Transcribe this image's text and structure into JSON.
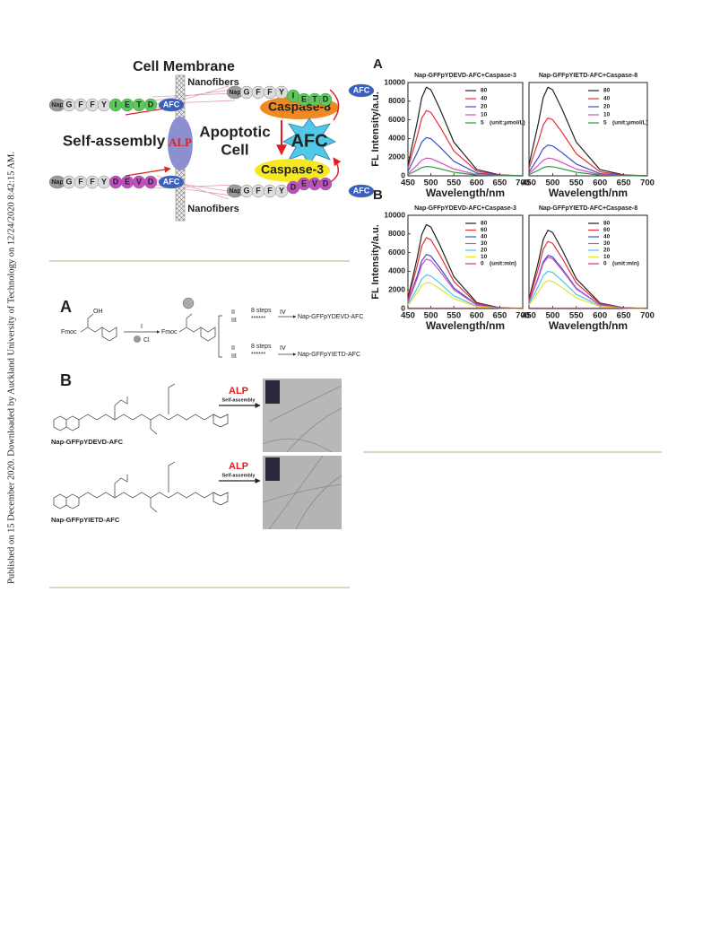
{
  "sidebar": "Published on 15 December 2020. Downloaded by Auckland University of Technology on 12/24/2020 8:42:15 AM.",
  "figure1": {
    "title": "Cell Membrane",
    "nanofibers_top": "Nanofibers",
    "nanofibers_bottom": "Nanofibers",
    "self_assembly": "Self-assembly",
    "alp": "ALP",
    "apoptotic": "Apoptotic",
    "cell": "Cell",
    "caspase8": "Caspase-8",
    "caspase3": "Caspase-3",
    "afc": "AFC",
    "peptide_ietd": [
      "Nap",
      "G",
      "F",
      "F",
      "Y",
      "I",
      "E",
      "T",
      "D",
      "AFC"
    ],
    "peptide_devd": [
      "Nap",
      "G",
      "F",
      "F",
      "Y",
      "D",
      "E",
      "V",
      "D",
      "AFC"
    ],
    "cleaved_ietd": [
      "Nap",
      "G",
      "F",
      "F",
      "Y",
      "I",
      "E",
      "T",
      "D",
      "AFC"
    ],
    "cleaved_devd": [
      "Nap",
      "G",
      "F",
      "F",
      "Y",
      "D",
      "E",
      "V",
      "D",
      "AFC"
    ]
  },
  "figure2": {
    "panel_a": "A",
    "panel_b": "B",
    "fmoc_1": "Fmoc",
    "fmoc_2": "Fmoc",
    "oh": "OH",
    "step_1": "I",
    "cl": "Cl",
    "upper": {
      "step_2": "II",
      "step_3": "III",
      "eight_steps": "8 steps",
      "stars": "******",
      "step_4": "IV",
      "product": "Nap-GFFpYDEVD-AFC"
    },
    "lower": {
      "step_2": "II",
      "step_3": "III",
      "eight_steps": "8 steps",
      "stars": "******",
      "step_4": "IV",
      "product": "Nap-GFFpYIETD-AFC"
    },
    "top_alp": "ALP",
    "top_self_assembly": "Self-assembly",
    "top_name": "Nap-GFFpYDEVD-AFC",
    "bottom_alp": "ALP",
    "bottom_self_assembly": "Self-assembly",
    "bottom_name": "Nap-GFFpYIETD-AFC"
  },
  "figure3": {
    "panel_a": "A",
    "panel_b": "B"
  },
  "chart_data": [
    {
      "type": "line",
      "title": "Nap-GFFpYDEVD-AFC+Caspase-3",
      "x_label": "Wavelength/nm",
      "y_label": "FL Intensity/a.u.",
      "legend_unit": "(unit:μmol/L)",
      "x": [
        450,
        470,
        480,
        490,
        500,
        520,
        550,
        600,
        650,
        700
      ],
      "xlim": [
        450,
        700
      ],
      "ylim": [
        0,
        10000
      ],
      "xticks": [
        450,
        500,
        550,
        600,
        650,
        700
      ],
      "yticks": [
        0,
        2000,
        4000,
        6000,
        8000,
        10000
      ],
      "series": [
        {
          "name": "80",
          "color": "#222222",
          "values": [
            1140,
            5700,
            8360,
            9500,
            9215,
            7125,
            3610,
            665,
            95,
            0
          ]
        },
        {
          "name": "40",
          "color": "#e8303a",
          "values": [
            840,
            4200,
            6160,
            7000,
            6790,
            5250,
            2660,
            490,
            70,
            0
          ]
        },
        {
          "name": "20",
          "color": "#3a4fc8",
          "values": [
            492,
            2460,
            3608,
            4100,
            3977,
            3075,
            1558,
            287,
            41,
            0
          ]
        },
        {
          "name": "10",
          "color": "#d050c0",
          "values": [
            228,
            1140,
            1672,
            1900,
            1843,
            1425,
            722,
            133,
            19,
            0
          ]
        },
        {
          "name": "5",
          "color": "#2a9a3a",
          "values": [
            120,
            600,
            880,
            1000,
            970,
            750,
            380,
            70,
            10,
            0
          ]
        }
      ]
    },
    {
      "type": "line",
      "title": "Nap-GFFpYIETD-AFC+Caspase-8",
      "x_label": "Wavelength/nm",
      "legend_unit": "(unit:μmol/L)",
      "x": [
        450,
        470,
        480,
        490,
        500,
        520,
        550,
        600,
        650,
        700
      ],
      "xlim": [
        450,
        700
      ],
      "ylim": [
        0,
        10000
      ],
      "xticks": [
        450,
        500,
        550,
        600,
        650,
        700
      ],
      "series": [
        {
          "name": "80",
          "color": "#222222",
          "values": [
            1140,
            5700,
            8360,
            9500,
            9215,
            7125,
            3610,
            665,
            95,
            0
          ]
        },
        {
          "name": "40",
          "color": "#e8303a",
          "values": [
            744,
            3720,
            5456,
            6200,
            6014,
            4650,
            2356,
            434,
            62,
            0
          ]
        },
        {
          "name": "20",
          "color": "#3a4fc8",
          "values": [
            396,
            1980,
            2904,
            3300,
            3201,
            2475,
            1254,
            231,
            33,
            0
          ]
        },
        {
          "name": "10",
          "color": "#d050c0",
          "values": [
            228,
            1140,
            1672,
            1900,
            1843,
            1425,
            722,
            133,
            19,
            0
          ]
        },
        {
          "name": "5",
          "color": "#2a9a3a",
          "values": [
            120,
            600,
            880,
            1000,
            970,
            750,
            380,
            70,
            10,
            0
          ]
        }
      ]
    },
    {
      "type": "line",
      "title": "Nap-GFFpYDEVD-AFC+Caspase-3",
      "x_label": "Wavelength/nm",
      "y_label": "FL Intensity/a.u.",
      "legend_unit": "(unit:min)",
      "x": [
        450,
        470,
        480,
        490,
        500,
        520,
        550,
        600,
        650,
        700
      ],
      "xlim": [
        450,
        700
      ],
      "ylim": [
        0,
        10000
      ],
      "xticks": [
        450,
        500,
        550,
        600,
        650,
        700
      ],
      "yticks": [
        0,
        2000,
        4000,
        6000,
        8000,
        10000
      ],
      "series": [
        {
          "name": "80",
          "color": "#222222",
          "values": [
            1080,
            5400,
            7920,
            9000,
            8730,
            6750,
            3420,
            630,
            90,
            0
          ]
        },
        {
          "name": "60",
          "color": "#e8303a",
          "values": [
            912,
            4560,
            6688,
            7600,
            7372,
            5700,
            2888,
            532,
            76,
            0
          ]
        },
        {
          "name": "40",
          "color": "#3a4fc8",
          "values": [
            696,
            3480,
            5104,
            5800,
            5626,
            4350,
            2204,
            406,
            58,
            0
          ]
        },
        {
          "name": "30",
          "color": "#d050c0",
          "values": [
            636,
            3180,
            4664,
            5300,
            5141,
            3975,
            2014,
            371,
            53,
            0
          ]
        },
        {
          "name": "20",
          "color": "#40c8e8",
          "values": [
            432,
            2160,
            3168,
            3600,
            3492,
            2700,
            1368,
            252,
            36,
            0
          ]
        },
        {
          "name": "10",
          "color": "#e8e030",
          "values": [
            336,
            1680,
            2464,
            2800,
            2716,
            2100,
            1064,
            196,
            28,
            0
          ]
        },
        {
          "name": "0",
          "color": "#e0307a",
          "values": [
            50,
            50,
            50,
            50,
            50,
            50,
            50,
            50,
            50,
            50
          ]
        }
      ]
    },
    {
      "type": "line",
      "title": "Nap-GFFpYIETD-AFC+Caspase-8",
      "x_label": "Wavelength/nm",
      "legend_unit": "(unit:min)",
      "x": [
        450,
        470,
        480,
        490,
        500,
        520,
        550,
        600,
        650,
        700
      ],
      "xlim": [
        450,
        700
      ],
      "ylim": [
        0,
        10000
      ],
      "xticks": [
        450,
        500,
        550,
        600,
        650,
        700
      ],
      "series": [
        {
          "name": "80",
          "color": "#222222",
          "values": [
            1008,
            5040,
            7392,
            8400,
            8148,
            6300,
            3192,
            588,
            84,
            0
          ]
        },
        {
          "name": "60",
          "color": "#e8303a",
          "values": [
            864,
            4320,
            6336,
            7200,
            6984,
            5400,
            2736,
            504,
            72,
            0
          ]
        },
        {
          "name": "40",
          "color": "#3a4fc8",
          "values": [
            684,
            3420,
            5016,
            5700,
            5529,
            4275,
            2166,
            399,
            57,
            0
          ]
        },
        {
          "name": "30",
          "color": "#d050c0",
          "values": [
            660,
            3300,
            4840,
            5500,
            5335,
            4125,
            2090,
            385,
            55,
            0
          ]
        },
        {
          "name": "20",
          "color": "#40c8e8",
          "values": [
            480,
            2400,
            3520,
            4000,
            3880,
            3000,
            1520,
            280,
            40,
            0
          ]
        },
        {
          "name": "10",
          "color": "#e8e030",
          "values": [
            360,
            1800,
            2640,
            3000,
            2910,
            2250,
            1140,
            210,
            30,
            0
          ]
        },
        {
          "name": "0",
          "color": "#e0307a",
          "values": [
            50,
            50,
            50,
            50,
            50,
            50,
            50,
            50,
            50,
            50
          ]
        }
      ]
    }
  ]
}
